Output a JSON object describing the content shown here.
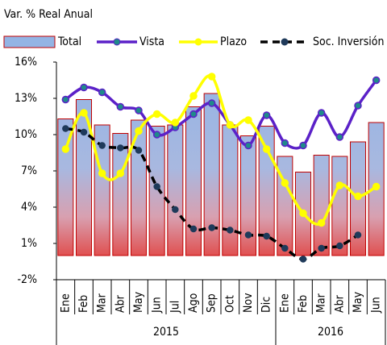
{
  "chart_data": {
    "type": "bar-line",
    "subtitle": "Var. % Real Anual",
    "category_groups": [
      {
        "label": "2015",
        "categories": [
          "Ene",
          "Feb",
          "Mar",
          "Abr",
          "May",
          "Jun",
          "Jul",
          "Ago",
          "Sep",
          "Oct",
          "Nov",
          "Dic"
        ]
      },
      {
        "label": "2016",
        "categories": [
          "Ene",
          "Feb",
          "Mar",
          "Abr",
          "May",
          "Jun"
        ]
      }
    ],
    "series": [
      {
        "name": "Total",
        "type": "bar",
        "color": "#c00000",
        "values": [
          11.3,
          12.9,
          10.8,
          10.1,
          11.2,
          10.7,
          10.8,
          12.3,
          13.4,
          10.8,
          9.9,
          10.7,
          8.2,
          6.9,
          8.3,
          8.2,
          9.4,
          11.0
        ]
      },
      {
        "name": "Vista",
        "type": "line",
        "color": "#5b21c8",
        "values": [
          12.9,
          13.9,
          13.5,
          12.3,
          12.0,
          10.0,
          10.6,
          11.7,
          12.6,
          10.8,
          9.1,
          11.6,
          9.3,
          9.1,
          11.8,
          9.8,
          12.4,
          14.5
        ]
      },
      {
        "name": "Plazo",
        "type": "line",
        "color": "#ffff00",
        "values": [
          8.8,
          11.8,
          6.8,
          6.8,
          10.3,
          11.7,
          11.0,
          13.2,
          14.8,
          10.8,
          11.2,
          8.8,
          6.0,
          3.5,
          2.7,
          5.8,
          4.9,
          5.7
        ]
      },
      {
        "name": "Soc. Inversión",
        "type": "dashed",
        "color": "#000000",
        "values": [
          10.5,
          10.2,
          9.1,
          8.9,
          8.7,
          5.7,
          3.8,
          2.2,
          2.3,
          2.1,
          1.7,
          1.6,
          0.6,
          -0.3,
          0.6,
          0.8,
          1.7,
          null
        ]
      }
    ],
    "ylim": [
      -2,
      16
    ],
    "yticks": [
      {
        "value": -2,
        "label": "-2%"
      },
      {
        "value": 1,
        "label": "1%"
      },
      {
        "value": 4,
        "label": "4%"
      },
      {
        "value": 7,
        "label": "7%"
      },
      {
        "value": 10,
        "label": "10%"
      },
      {
        "value": 13,
        "label": "13%"
      },
      {
        "value": 16,
        "label": "16%"
      }
    ],
    "grid": false
  }
}
